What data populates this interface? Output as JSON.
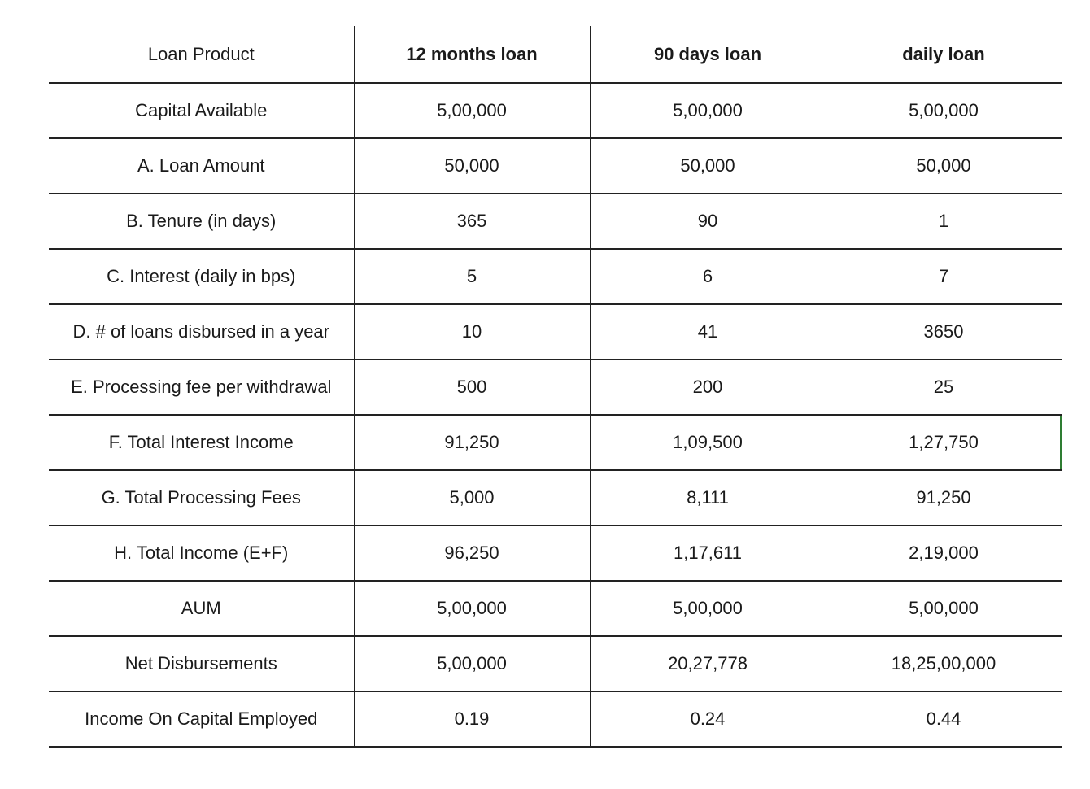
{
  "table": {
    "columns": [
      "Loan Product",
      "12 months loan",
      "90 days loan",
      "daily loan"
    ],
    "rows": [
      [
        "Capital Available",
        "5,00,000",
        "5,00,000",
        "5,00,000"
      ],
      [
        "A. Loan Amount",
        "50,000",
        "50,000",
        "50,000"
      ],
      [
        "B. Tenure (in days)",
        "365",
        "90",
        "1"
      ],
      [
        "C. Interest (daily in bps)",
        "5",
        "6",
        "7"
      ],
      [
        "D. # of loans disbursed in a year",
        "10",
        "41",
        "3650"
      ],
      [
        "E. Processing fee per withdrawal",
        "500",
        "200",
        "25"
      ],
      [
        "F. Total Interest Income",
        "91,250",
        "1,09,500",
        "1,27,750"
      ],
      [
        "G. Total Processing Fees",
        "5,000",
        "8,111",
        "91,250"
      ],
      [
        "H. Total Income (E+F)",
        "96,250",
        "1,17,611",
        "2,19,000"
      ],
      [
        "AUM",
        "5,00,000",
        "5,00,000",
        "5,00,000"
      ],
      [
        "Net Disbursements",
        "5,00,000",
        "20,27,778",
        "18,25,00,000"
      ],
      [
        "Income On Capital Employed",
        "0.19",
        "0.24",
        "0.44"
      ]
    ]
  },
  "selection": {
    "row": 6,
    "col": 3,
    "border_color": "#2e7d32"
  }
}
